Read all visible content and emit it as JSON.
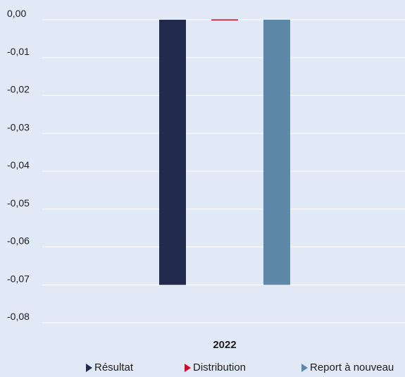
{
  "chart_data": {
    "type": "bar",
    "categories": [
      "2022"
    ],
    "series": [
      {
        "name": "Résultat",
        "values": [
          -0.07
        ],
        "color": "#222a4d"
      },
      {
        "name": "Distribution",
        "values": [
          0.0
        ],
        "color": "#c8102e"
      },
      {
        "name": "Report à nouveau",
        "values": [
          -0.07
        ],
        "color": "#5e88a7"
      }
    ],
    "ylim": [
      -0.08,
      0.0
    ],
    "yticks": [
      "0,00",
      "-0,01",
      "-0,02",
      "-0,03",
      "-0,04",
      "-0,05",
      "-0,06",
      "-0,07",
      "-0,08"
    ],
    "grid": true,
    "legend_position": "bottom"
  }
}
